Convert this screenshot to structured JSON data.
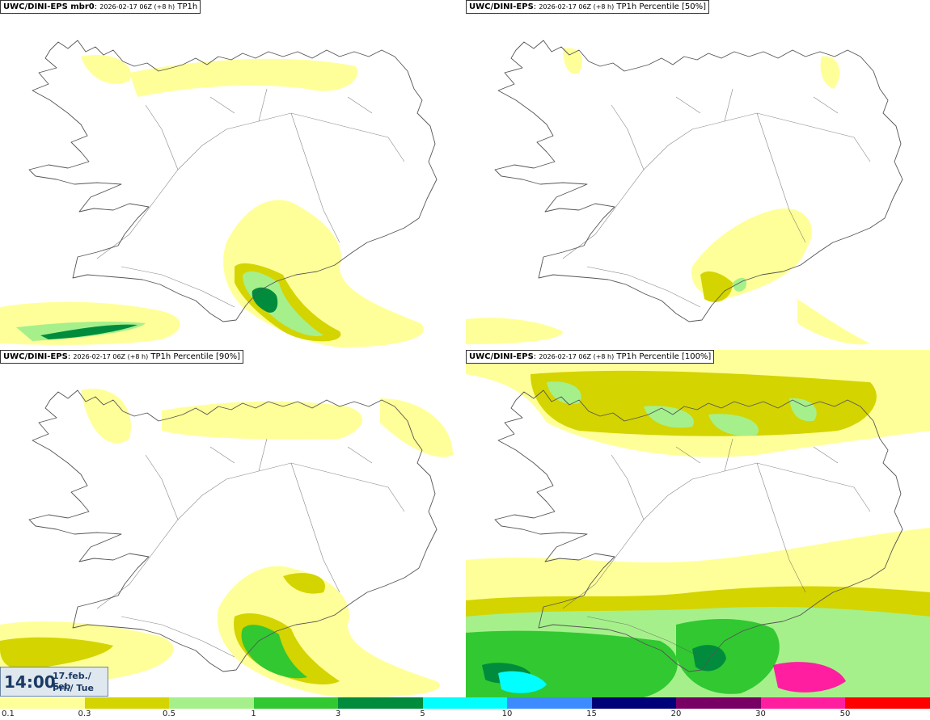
{
  "panels": [
    {
      "model": "UWC/DINI-EPS mbr0",
      "run": "2026-02-17 06Z (+8 h)",
      "field": "TP1h"
    },
    {
      "model": "UWC/DINI-EPS",
      "run": "2026-02-17 06Z (+8 h)",
      "field": "TP1h Percentile [50%]"
    },
    {
      "model": "UWC/DINI-EPS",
      "run": "2026-02-17 06Z (+8 h)",
      "field": "TP1h Percentile [90%]"
    },
    {
      "model": "UWC/DINI-EPS",
      "run": "2026-02-17 06Z (+8 h)",
      "field": "TP1h Percentile [100%]"
    }
  ],
  "time_box": {
    "clock": "14:00",
    "date_line1": "17.feb./ Feb",
    "date_line2": "Þri./ Tue"
  },
  "legend": {
    "colors": [
      "#ffff99",
      "#d4d400",
      "#a6f08c",
      "#32c832",
      "#008c3c",
      "#00ffff",
      "#3c8cff",
      "#000078",
      "#780064",
      "#ff1ea0",
      "#ff0000"
    ],
    "ticks": [
      "0.1",
      "0.3",
      "0.5",
      "1",
      "3",
      "5",
      "10",
      "15",
      "20",
      "30",
      "50"
    ]
  },
  "colors": {
    "land_outline": "#555555",
    "background": "#ffffff"
  }
}
